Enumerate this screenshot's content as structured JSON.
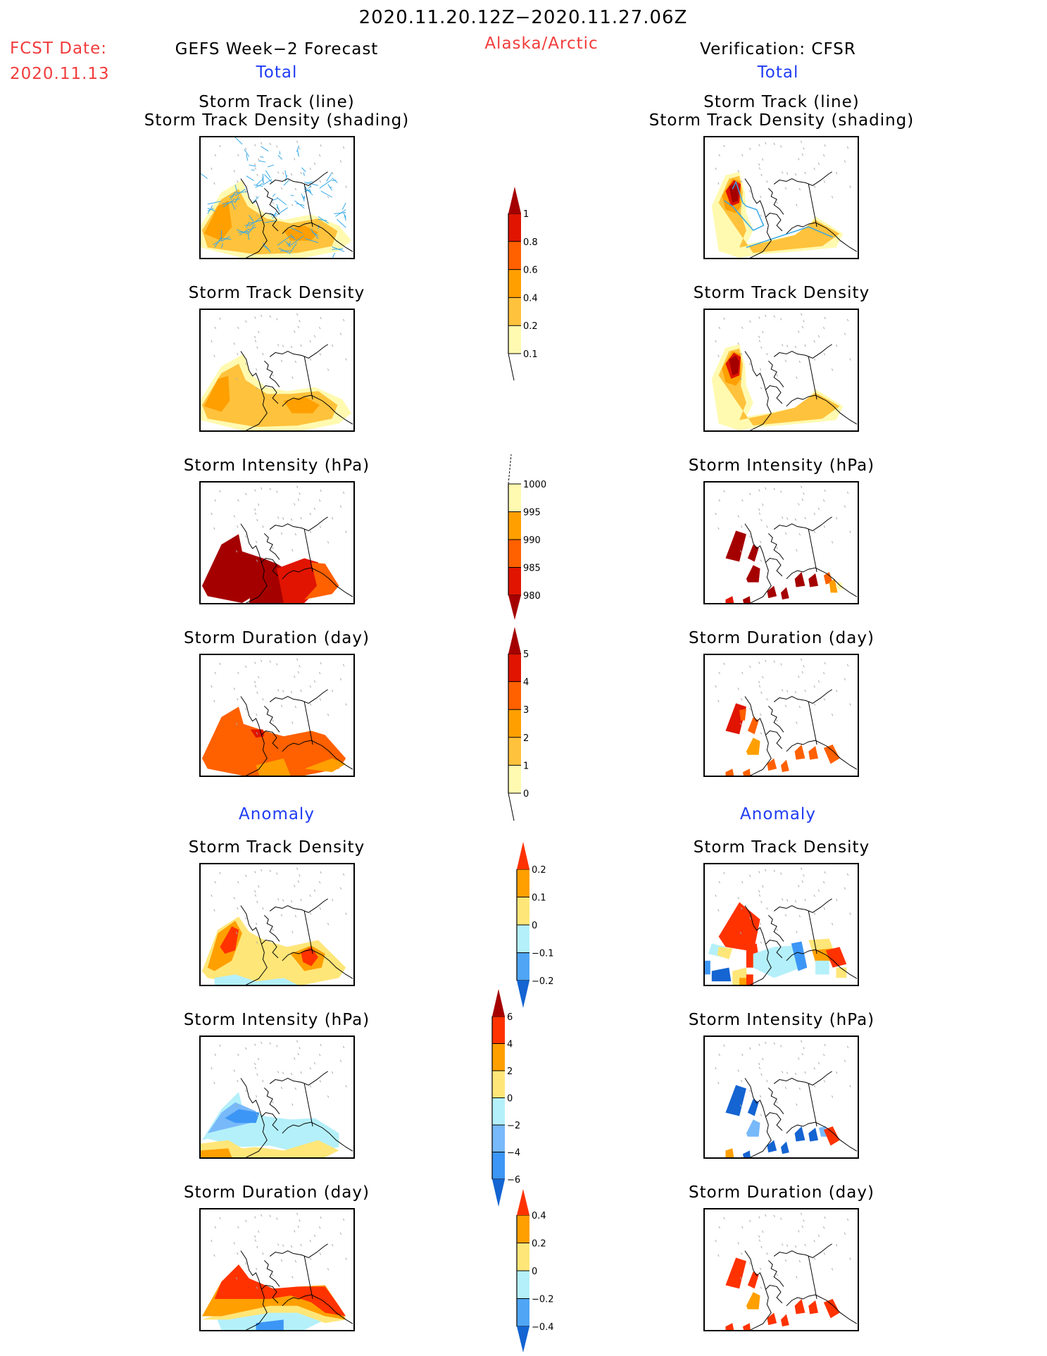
{
  "header": {
    "period": "2020.11.20.12Z−2020.11.27.06Z",
    "region": "Alaska/Arctic",
    "fcst_label": "FCST Date:",
    "fcst_date": "2020.11.13",
    "left_title": "GEFS Week−2 Forecast",
    "right_title": "Verification: CFSR",
    "total_label": "Total",
    "anomaly_label": "Anomaly"
  },
  "colors": {
    "header_red": "#f23c3c",
    "section_blue": "#1f3cf5",
    "track_line": "#35a7e8"
  },
  "panel_titles": {
    "track_line": "Storm Track (line)",
    "track_density_shading": "Storm Track Density (shading)",
    "track_density": "Storm Track Density",
    "intensity": "Storm Intensity (hPa)",
    "duration": "Storm Duration (day)"
  },
  "chart_data": [
    {
      "type": "heatmap",
      "id": "total-track-density-colorbar",
      "title": "Storm Track Density (Total)",
      "levels": [
        0.1,
        0.2,
        0.4,
        0.6,
        0.8,
        1
      ],
      "tick_labels": [
        "0.1",
        "0.2",
        "0.4",
        "0.6",
        "0.8",
        "1"
      ],
      "colors": [
        "#fffab0",
        "#ffc23c",
        "#ff9f00",
        "#ff6000",
        "#e01400"
      ],
      "over_color": "#a50000",
      "under_extension": "line"
    },
    {
      "type": "heatmap",
      "id": "total-intensity-colorbar",
      "title": "Storm Intensity (hPa) (Total)",
      "levels": [
        980,
        985,
        990,
        995,
        1000
      ],
      "tick_labels": [
        "980",
        "985",
        "990",
        "995",
        "1000"
      ],
      "colors": [
        "#e01400",
        "#ff6000",
        "#ff9f00",
        "#fffab0"
      ],
      "under_color": "#a50000",
      "over_extension": "line"
    },
    {
      "type": "heatmap",
      "id": "total-duration-colorbar",
      "title": "Storm Duration (day) (Total)",
      "levels": [
        0,
        1,
        2,
        3,
        4,
        5
      ],
      "tick_labels": [
        "0",
        "1",
        "2",
        "3",
        "4",
        "5"
      ],
      "colors": [
        "#fffab0",
        "#ffc23c",
        "#ff9f00",
        "#ff6000",
        "#e01400"
      ],
      "over_color": "#a50000",
      "under_extension": "line"
    },
    {
      "type": "heatmap",
      "id": "anomaly-track-density-colorbar",
      "title": "Storm Track Density (Anomaly)",
      "levels": [
        -0.2,
        -0.1,
        0,
        0.1,
        0.2
      ],
      "tick_labels": [
        "−0.2",
        "−0.1",
        "0",
        "0.1",
        "0.2"
      ],
      "colors": [
        "#50a5f5",
        "#b4f0fa",
        "#ffe678",
        "#ff9f00"
      ],
      "under_color": "#1464d2",
      "over_color": "#ff3200"
    },
    {
      "type": "heatmap",
      "id": "anomaly-intensity-colorbar",
      "title": "Storm Intensity (hPa) (Anomaly)",
      "levels": [
        -6,
        -4,
        -2,
        0,
        2,
        4,
        6
      ],
      "tick_labels": [
        "−6",
        "−4",
        "−2",
        "0",
        "2",
        "4",
        "6"
      ],
      "colors": [
        "#3c96f5",
        "#78b9fa",
        "#b4f0fa",
        "#ffe678",
        "#ff9f00",
        "#ff3200"
      ],
      "under_color": "#1464d2",
      "over_color": "#a50000"
    },
    {
      "type": "heatmap",
      "id": "anomaly-duration-colorbar",
      "title": "Storm Duration (day) (Anomaly)",
      "levels": [
        -0.4,
        -0.2,
        0,
        0.2,
        0.4
      ],
      "tick_labels": [
        "−0.4",
        "−0.2",
        "0",
        "0.2",
        "0.4"
      ],
      "colors": [
        "#50a5f5",
        "#b4f0fa",
        "#ffe678",
        "#ff9f00"
      ],
      "under_color": "#1464d2",
      "over_color": "#ff3200"
    }
  ],
  "panels": [
    {
      "id": "fcst-total-track",
      "column": "GEFS Week-2 Forecast",
      "section": "Total",
      "field": "Storm Track (line) / Storm Track Density (shading)",
      "colorbar": "total-track-density-colorbar",
      "dominant_level": "0.2-0.6",
      "has_track_lines": true
    },
    {
      "id": "fcst-total-density",
      "column": "GEFS Week-2 Forecast",
      "section": "Total",
      "field": "Storm Track Density",
      "colorbar": "total-track-density-colorbar",
      "dominant_level": "0.2-0.6"
    },
    {
      "id": "fcst-total-intensity",
      "column": "GEFS Week-2 Forecast",
      "section": "Total",
      "field": "Storm Intensity (hPa)",
      "colorbar": "total-intensity-colorbar",
      "dominant_level": "<980-995"
    },
    {
      "id": "fcst-total-duration",
      "column": "GEFS Week-2 Forecast",
      "section": "Total",
      "field": "Storm Duration (day)",
      "colorbar": "total-duration-colorbar",
      "dominant_level": "3-4"
    },
    {
      "id": "fcst-anom-density",
      "column": "GEFS Week-2 Forecast",
      "section": "Anomaly",
      "field": "Storm Track Density",
      "colorbar": "anomaly-track-density-colorbar",
      "dominant_level": "0-0.2"
    },
    {
      "id": "fcst-anom-intensity",
      "column": "GEFS Week-2 Forecast",
      "section": "Anomaly",
      "field": "Storm Intensity (hPa)",
      "colorbar": "anomaly-intensity-colorbar",
      "dominant_level": "-4-2"
    },
    {
      "id": "fcst-anom-duration",
      "column": "GEFS Week-2 Forecast",
      "section": "Anomaly",
      "field": "Storm Duration (day)",
      "colorbar": "anomaly-duration-colorbar",
      "dominant_level": "-0.2->0.4"
    },
    {
      "id": "verif-total-track",
      "column": "Verification: CFSR",
      "section": "Total",
      "field": "Storm Track (line) / Storm Track Density (shading)",
      "colorbar": "total-track-density-colorbar",
      "dominant_level": "0.1->1",
      "has_track_lines": true
    },
    {
      "id": "verif-total-density",
      "column": "Verification: CFSR",
      "section": "Total",
      "field": "Storm Track Density",
      "colorbar": "total-track-density-colorbar",
      "dominant_level": "0.1->1"
    },
    {
      "id": "verif-total-intensity",
      "column": "Verification: CFSR",
      "section": "Total",
      "field": "Storm Intensity (hPa)",
      "colorbar": "total-intensity-colorbar",
      "dominant_level": "<980"
    },
    {
      "id": "verif-total-duration",
      "column": "Verification: CFSR",
      "section": "Total",
      "field": "Storm Duration (day)",
      "colorbar": "total-duration-colorbar",
      "dominant_level": "3-5"
    },
    {
      "id": "verif-anom-density",
      "column": "Verification: CFSR",
      "section": "Anomaly",
      "field": "Storm Track Density",
      "colorbar": "anomaly-track-density-colorbar",
      "dominant_level": "-0.2->0.2"
    },
    {
      "id": "verif-anom-intensity",
      "column": "Verification: CFSR",
      "section": "Anomaly",
      "field": "Storm Intensity (hPa)",
      "colorbar": "anomaly-intensity-colorbar",
      "dominant_level": "<-6-<-4"
    },
    {
      "id": "verif-anom-duration",
      "column": "Verification: CFSR",
      "section": "Anomaly",
      "field": "Storm Duration (day)",
      "colorbar": "anomaly-duration-colorbar",
      "dominant_level": ">0.4"
    }
  ]
}
